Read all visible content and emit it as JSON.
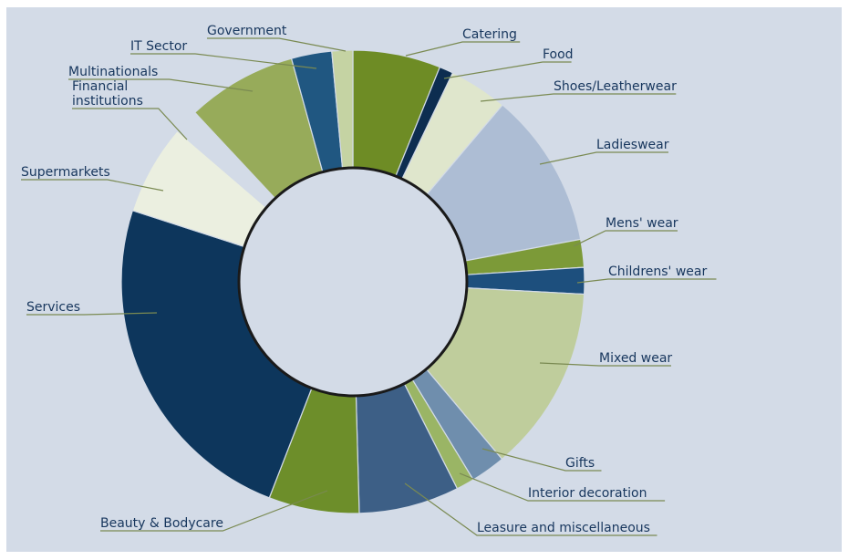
{
  "chart_data": {
    "type": "pie",
    "variant": "donut",
    "title": "",
    "unit": "%",
    "background": "#d3dbe7",
    "slices": [
      {
        "label": "Catering",
        "value": 6.3,
        "color": "#6e8c25"
      },
      {
        "label": "Food",
        "value": 1.0,
        "color": "#0d2d50"
      },
      {
        "label": "Shoes/Leatherwear",
        "value": 4.2,
        "color": "#dfe6cc"
      },
      {
        "label": "Ladieswear",
        "value": 11.2,
        "color": "#adbdd4"
      },
      {
        "label": "Mens' wear",
        "value": 2.0,
        "color": "#7c9a38"
      },
      {
        "label": "Childrens' wear",
        "value": 1.9,
        "color": "#1d4f7d"
      },
      {
        "label": "Mixed wear",
        "value": 13.4,
        "color": "#bfcd9c"
      },
      {
        "label": "Gifts",
        "value": 2.5,
        "color": "#6f8ead"
      },
      {
        "label": "Interior decoration",
        "value": 1.3,
        "color": "#9ab565"
      },
      {
        "label": "Leasure and miscellaneous",
        "value": 7.2,
        "color": "#3d5f86"
      },
      {
        "label": "Beauty & Bodycare",
        "value": 6.5,
        "color": "#6d8e2a"
      },
      {
        "label": "Services",
        "value": 24.8,
        "color": "#0d365c"
      },
      {
        "label": "Supermarkets",
        "value": 6.5,
        "color": "#ebefe0"
      },
      {
        "label": "Financial institutions",
        "value": 1.8,
        "color": "#d3dbe7"
      },
      {
        "label": "Multinationals",
        "value": 7.9,
        "color": "#97ab5a"
      },
      {
        "label": "IT Sector",
        "value": 2.9,
        "color": "#205781"
      },
      {
        "label": "Government",
        "value": 1.5,
        "color": "#c5d3a3"
      }
    ],
    "legend": "none",
    "label_style": "callout lines",
    "grid": false
  }
}
